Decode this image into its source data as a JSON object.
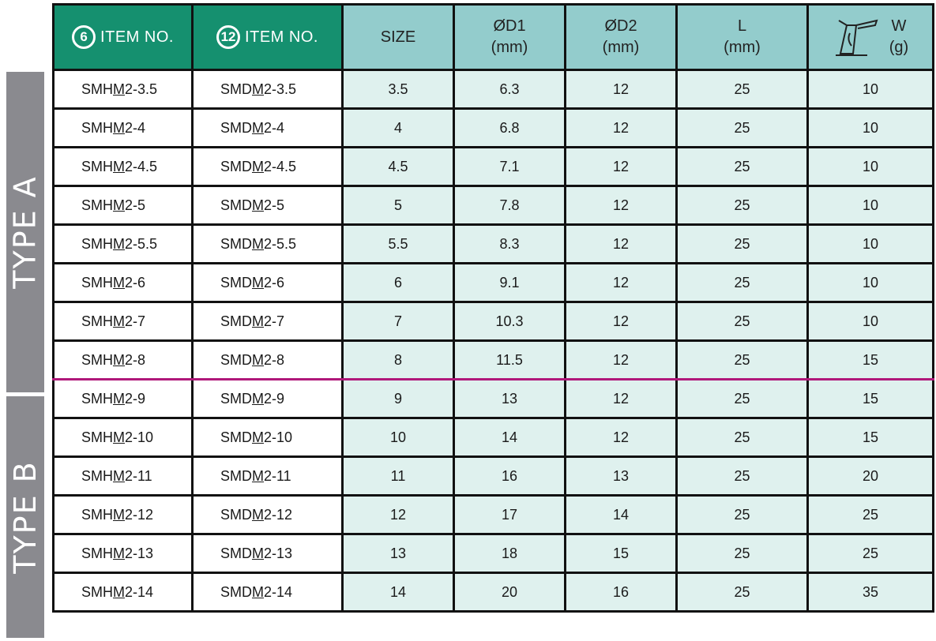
{
  "side_labels": {
    "type_a": "TYPE A",
    "type_b": "TYPE B"
  },
  "headers": {
    "item1_badge": "6",
    "item1_label": "ITEM NO.",
    "item2_badge": "12",
    "item2_label": "ITEM NO.",
    "size": "SIZE",
    "d1": "ØD1",
    "d1_unit": "(mm)",
    "d2": "ØD2",
    "d2_unit": "(mm)",
    "l": "L",
    "l_unit": "(mm)",
    "w": "W",
    "w_unit": "(g)",
    "w_icon": "scale-weight-icon"
  },
  "colors": {
    "item_header": "#15906f",
    "spec_header": "#93cccc",
    "value_cell": "#dff1ee",
    "side_label": "#8a8a8f",
    "type_divider": "#b0187a"
  },
  "rows": [
    {
      "c1_pre": "SMH",
      "c1_u": "M",
      "c1_post": "2-3.5",
      "c2_pre": "SMD",
      "c2_u": "M",
      "c2_post": "2-3.5",
      "size": "3.5",
      "d1": "6.3",
      "d2": "12",
      "l": "25",
      "w": "10"
    },
    {
      "c1_pre": "SMH",
      "c1_u": "M",
      "c1_post": "2-4",
      "c2_pre": "SMD",
      "c2_u": "M",
      "c2_post": "2-4",
      "size": "4",
      "d1": "6.8",
      "d2": "12",
      "l": "25",
      "w": "10"
    },
    {
      "c1_pre": "SMH",
      "c1_u": "M",
      "c1_post": "2-4.5",
      "c2_pre": "SMD",
      "c2_u": "M",
      "c2_post": "2-4.5",
      "size": "4.5",
      "d1": "7.1",
      "d2": "12",
      "l": "25",
      "w": "10"
    },
    {
      "c1_pre": "SMH",
      "c1_u": "M",
      "c1_post": "2-5",
      "c2_pre": "SMD",
      "c2_u": "M",
      "c2_post": "2-5",
      "size": "5",
      "d1": "7.8",
      "d2": "12",
      "l": "25",
      "w": "10"
    },
    {
      "c1_pre": "SMH",
      "c1_u": "M",
      "c1_post": "2-5.5",
      "c2_pre": "SMD",
      "c2_u": "M",
      "c2_post": "2-5.5",
      "size": "5.5",
      "d1": "8.3",
      "d2": "12",
      "l": "25",
      "w": "10"
    },
    {
      "c1_pre": "SMH",
      "c1_u": "M",
      "c1_post": "2-6",
      "c2_pre": "SMD",
      "c2_u": "M",
      "c2_post": "2-6",
      "size": "6",
      "d1": "9.1",
      "d2": "12",
      "l": "25",
      "w": "10"
    },
    {
      "c1_pre": "SMH",
      "c1_u": "M",
      "c1_post": "2-7",
      "c2_pre": "SMD",
      "c2_u": "M",
      "c2_post": "2-7",
      "size": "7",
      "d1": "10.3",
      "d2": "12",
      "l": "25",
      "w": "10"
    },
    {
      "c1_pre": "SMH",
      "c1_u": "M",
      "c1_post": "2-8",
      "c2_pre": "SMD",
      "c2_u": "M",
      "c2_post": "2-8",
      "size": "8",
      "d1": "11.5",
      "d2": "12",
      "l": "25",
      "w": "15"
    },
    {
      "c1_pre": "SMH",
      "c1_u": "M",
      "c1_post": "2-9",
      "c2_pre": "SMD",
      "c2_u": "M",
      "c2_post": "2-9",
      "size": "9",
      "d1": "13",
      "d2": "12",
      "l": "25",
      "w": "15"
    },
    {
      "c1_pre": "SMH",
      "c1_u": "M",
      "c1_post": "2-10",
      "c2_pre": "SMD",
      "c2_u": "M",
      "c2_post": "2-10",
      "size": "10",
      "d1": "14",
      "d2": "12",
      "l": "25",
      "w": "15"
    },
    {
      "c1_pre": "SMH",
      "c1_u": "M",
      "c1_post": "2-11",
      "c2_pre": "SMD",
      "c2_u": "M",
      "c2_post": "2-11",
      "size": "11",
      "d1": "16",
      "d2": "13",
      "l": "25",
      "w": "20"
    },
    {
      "c1_pre": "SMH",
      "c1_u": "M",
      "c1_post": "2-12",
      "c2_pre": "SMD",
      "c2_u": "M",
      "c2_post": "2-12",
      "size": "12",
      "d1": "17",
      "d2": "14",
      "l": "25",
      "w": "25"
    },
    {
      "c1_pre": "SMH",
      "c1_u": "M",
      "c1_post": "2-13",
      "c2_pre": "SMD",
      "c2_u": "M",
      "c2_post": "2-13",
      "size": "13",
      "d1": "18",
      "d2": "15",
      "l": "25",
      "w": "25"
    },
    {
      "c1_pre": "SMH",
      "c1_u": "M",
      "c1_post": "2-14",
      "c2_pre": "SMD",
      "c2_u": "M",
      "c2_post": "2-14",
      "size": "14",
      "d1": "20",
      "d2": "16",
      "l": "25",
      "w": "35"
    }
  ]
}
